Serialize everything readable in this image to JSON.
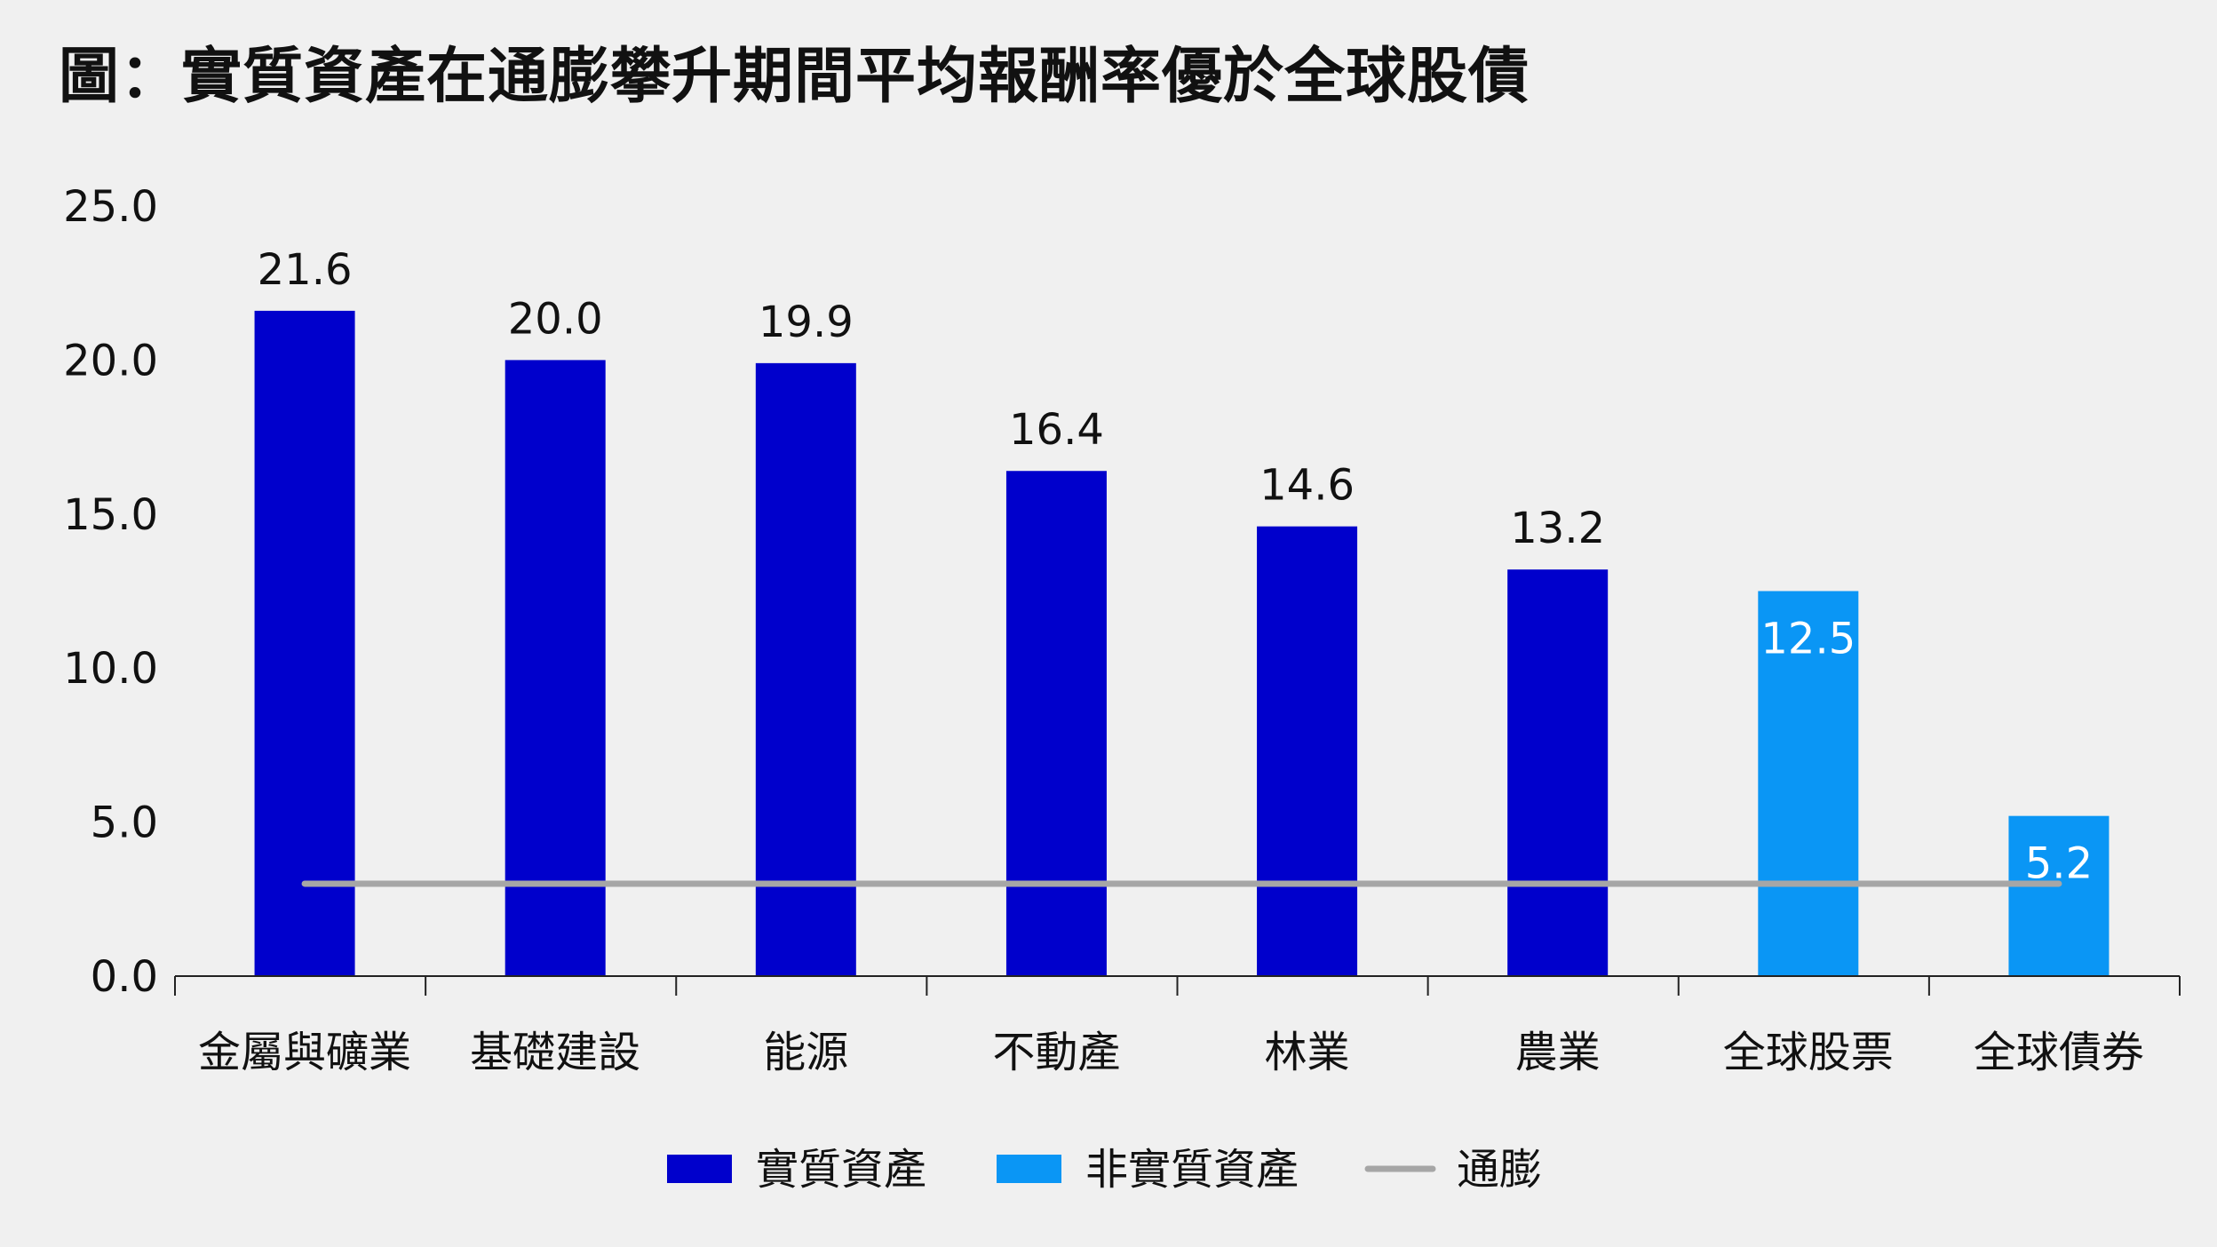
{
  "chart_data": {
    "type": "bar",
    "title": "圖：實質資產在通膨攀升期間平均報酬率優於全球股債",
    "xlabel": "",
    "ylabel": "",
    "ylim": [
      0,
      25
    ],
    "yticks": [
      0,
      5,
      10,
      15,
      20,
      25
    ],
    "ytick_labels": [
      "0.0",
      "5.0",
      "10.0",
      "15.0",
      "20.0",
      "25.0"
    ],
    "grid": false,
    "legend_position": "bottom",
    "categories": [
      "金屬與礦業",
      "基礎建設",
      "能源",
      "不動產",
      "林業",
      "農業",
      "全球股票",
      "全球債券"
    ],
    "values": [
      21.6,
      20.0,
      19.9,
      16.4,
      14.6,
      13.2,
      12.5,
      5.2
    ],
    "value_labels": [
      "21.6",
      "20.0",
      "19.9",
      "16.4",
      "14.6",
      "13.2",
      "12.5",
      "5.2"
    ],
    "bar_group": [
      0,
      0,
      0,
      0,
      0,
      0,
      1,
      1
    ],
    "groups": [
      {
        "name": "實質資產",
        "color": "#0000cc"
      },
      {
        "name": "非實質資產",
        "color": "#0a96f5"
      }
    ],
    "inflation_line": {
      "name": "通膨",
      "value": 3.0,
      "color": "#a6a6a6"
    }
  }
}
